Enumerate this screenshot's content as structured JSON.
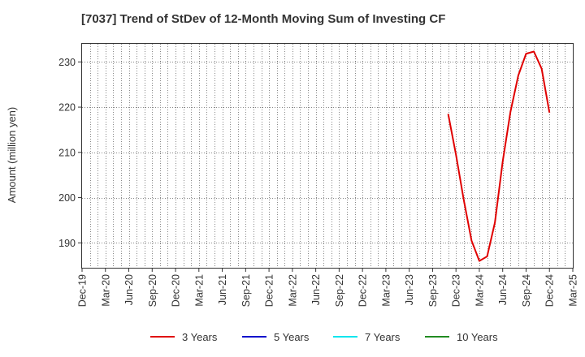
{
  "chart_data": {
    "type": "line",
    "title": "[7037]  Trend of StDev of 12-Month Moving Sum of Investing CF",
    "ylabel": "Amount (million yen)",
    "xlabel": "",
    "ylim": [
      184.5,
      234
    ],
    "yticks": [
      190,
      200,
      210,
      220,
      230
    ],
    "grid": true,
    "legend_position": "bottom",
    "x_tick_labels": [
      "Dec-19",
      "Mar-20",
      "Jun-20",
      "Sep-20",
      "Dec-20",
      "Mar-21",
      "Jun-21",
      "Sep-21",
      "Dec-21",
      "Mar-22",
      "Jun-22",
      "Sep-22",
      "Dec-22",
      "Mar-23",
      "Jun-23",
      "Sep-23",
      "Dec-23",
      "Mar-24",
      "Jun-24",
      "Sep-24",
      "Dec-24",
      "Mar-25"
    ],
    "x_start": "2019-12",
    "x_months": 63,
    "series": [
      {
        "name": "3 Years",
        "color": "#e00000",
        "points": [
          {
            "x": "2023-11",
            "y": 218.5
          },
          {
            "x": "2023-12",
            "y": 209.5
          },
          {
            "x": "2024-01",
            "y": 199.5
          },
          {
            "x": "2024-02",
            "y": 190.5
          },
          {
            "x": "2024-03",
            "y": 186.0
          },
          {
            "x": "2024-04",
            "y": 187.0
          },
          {
            "x": "2024-05",
            "y": 194.5
          },
          {
            "x": "2024-06",
            "y": 208.0
          },
          {
            "x": "2024-07",
            "y": 219.0
          },
          {
            "x": "2024-08",
            "y": 227.0
          },
          {
            "x": "2024-09",
            "y": 231.8
          },
          {
            "x": "2024-10",
            "y": 232.3
          },
          {
            "x": "2024-11",
            "y": 228.5
          },
          {
            "x": "2024-12",
            "y": 218.8
          }
        ]
      },
      {
        "name": "5 Years",
        "color": "#0000cc",
        "points": []
      },
      {
        "name": "7 Years",
        "color": "#00e5ee",
        "points": []
      },
      {
        "name": "10 Years",
        "color": "#228b22",
        "points": []
      }
    ]
  }
}
